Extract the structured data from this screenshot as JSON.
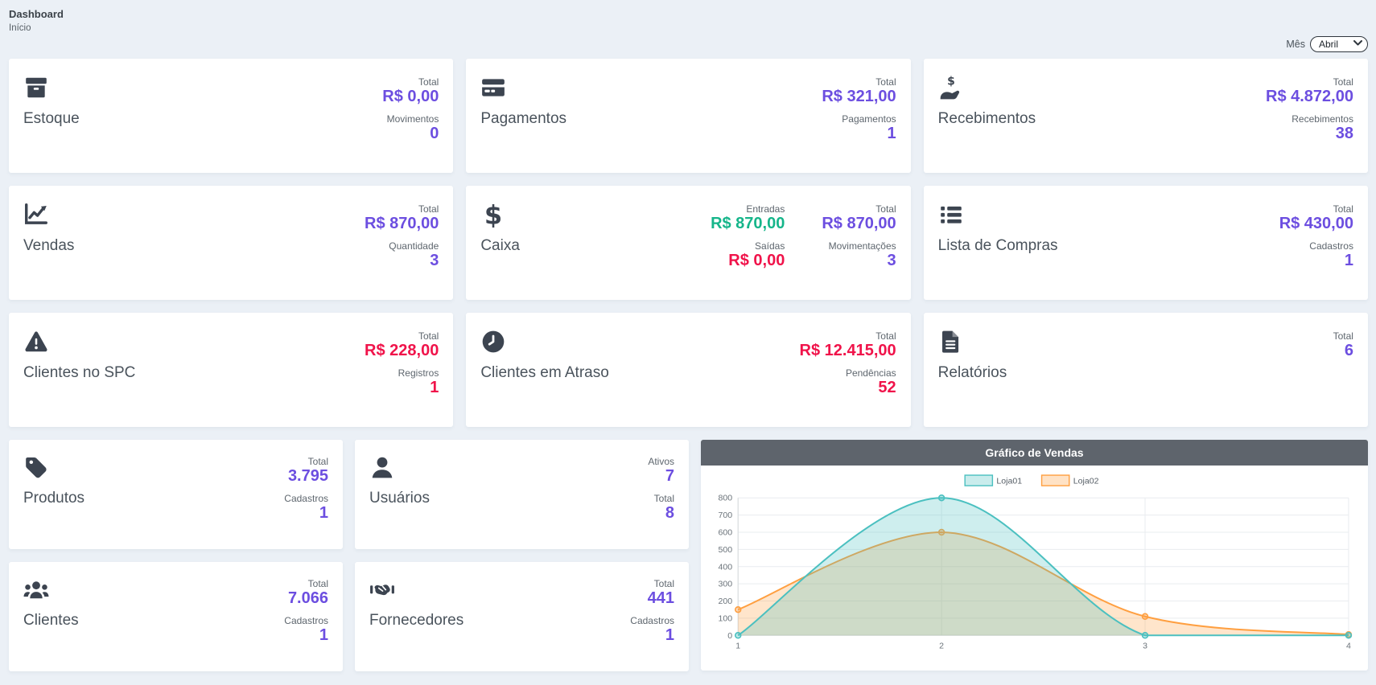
{
  "page": {
    "title": "Dashboard",
    "breadcrumb": "Início"
  },
  "month_filter": {
    "label": "Mês",
    "selected": "Abril",
    "options": [
      "Abril"
    ]
  },
  "colors": {
    "accent_purple": "#6C4EE0",
    "negative_red": "#F0134A",
    "positive_green": "#15B58A",
    "icon_dark": "#3C4450",
    "chart_header_bg": "#5E646C",
    "page_bg": "#EBF0F6",
    "loja01_teal": "#4BC0C0",
    "loja02_orange": "#FF9F40"
  },
  "cards": [
    {
      "title": "Estoque",
      "icon": "box-icon",
      "stats": [
        {
          "label": "Total",
          "value": "R$ 0,00",
          "color": "purple"
        },
        {
          "label": "Movimentos",
          "value": "0",
          "color": "purple"
        }
      ]
    },
    {
      "title": "Pagamentos",
      "icon": "credit-card-icon",
      "stats": [
        {
          "label": "Total",
          "value": "R$ 321,00",
          "color": "purple"
        },
        {
          "label": "Pagamentos",
          "value": "1",
          "color": "purple"
        }
      ]
    },
    {
      "title": "Recebimentos",
      "icon": "hand-holding-dollar-icon",
      "stats": [
        {
          "label": "Total",
          "value": "R$ 4.872,00",
          "color": "purple"
        },
        {
          "label": "Recebimentos",
          "value": "38",
          "color": "purple"
        }
      ]
    },
    {
      "title": "Vendas",
      "icon": "chart-line-icon",
      "stats": [
        {
          "label": "Total",
          "value": "R$ 870,00",
          "color": "purple"
        },
        {
          "label": "Quantidade",
          "value": "3",
          "color": "purple"
        }
      ]
    },
    {
      "title": "Caixa",
      "icon": "dollar-sign-icon",
      "stats": [
        {
          "label": "Entradas",
          "value": "R$ 870,00",
          "color": "green"
        },
        {
          "label": "Saídas",
          "value": "R$ 0,00",
          "color": "red"
        },
        {
          "label": "Total",
          "value": "R$ 870,00",
          "color": "purple"
        },
        {
          "label": "Movimentações",
          "value": "3",
          "color": "purple"
        }
      ]
    },
    {
      "title": "Lista de Compras",
      "icon": "list-icon",
      "stats": [
        {
          "label": "Total",
          "value": "R$ 430,00",
          "color": "purple"
        },
        {
          "label": "Cadastros",
          "value": "1",
          "color": "purple"
        }
      ]
    },
    {
      "title": "Clientes no SPC",
      "icon": "warning-triangle-icon",
      "stats": [
        {
          "label": "Total",
          "value": "R$ 228,00",
          "color": "red"
        },
        {
          "label": "Registros",
          "value": "1",
          "color": "red"
        }
      ]
    },
    {
      "title": "Clientes em Atraso",
      "icon": "clock-icon",
      "stats": [
        {
          "label": "Total",
          "value": "R$ 12.415,00",
          "color": "red"
        },
        {
          "label": "Pendências",
          "value": "52",
          "color": "red"
        }
      ]
    },
    {
      "title": "Relatórios",
      "icon": "file-icon",
      "stats": [
        {
          "label": "Total",
          "value": "6",
          "color": "purple"
        }
      ]
    },
    {
      "title": "Produtos",
      "icon": "tag-icon",
      "stats": [
        {
          "label": "Total",
          "value": "3.795",
          "color": "purple"
        },
        {
          "label": "Cadastros",
          "value": "1",
          "color": "purple"
        }
      ]
    },
    {
      "title": "Usuários",
      "icon": "user-icon",
      "stats": [
        {
          "label": "Ativos",
          "value": "7",
          "color": "purple"
        },
        {
          "label": "Total",
          "value": "8",
          "color": "purple"
        }
      ]
    },
    {
      "title": "Clientes",
      "icon": "users-icon",
      "stats": [
        {
          "label": "Total",
          "value": "7.066",
          "color": "purple"
        },
        {
          "label": "Cadastros",
          "value": "1",
          "color": "purple"
        }
      ]
    },
    {
      "title": "Fornecedores",
      "icon": "handshake-icon",
      "stats": [
        {
          "label": "Total",
          "value": "441",
          "color": "purple"
        },
        {
          "label": "Cadastros",
          "value": "1",
          "color": "purple"
        }
      ]
    }
  ],
  "chart": {
    "title": "Gráfico de Vendas",
    "chart_data": {
      "type": "line",
      "title": "Gráfico de Vendas",
      "x": [
        1,
        2,
        3,
        4
      ],
      "series": [
        {
          "name": "Loja01",
          "color": "#4BC0C0",
          "values": [
            0,
            800,
            0,
            0
          ]
        },
        {
          "name": "Loja02",
          "color": "#FF9F40",
          "values": [
            150,
            600,
            110,
            5
          ]
        }
      ],
      "ylim": [
        0,
        800
      ],
      "y_ticks": [
        0,
        100,
        200,
        300,
        400,
        500,
        600,
        700,
        800
      ],
      "grid": true,
      "legend_position": "top",
      "smooth": true,
      "area_fill": true
    }
  }
}
